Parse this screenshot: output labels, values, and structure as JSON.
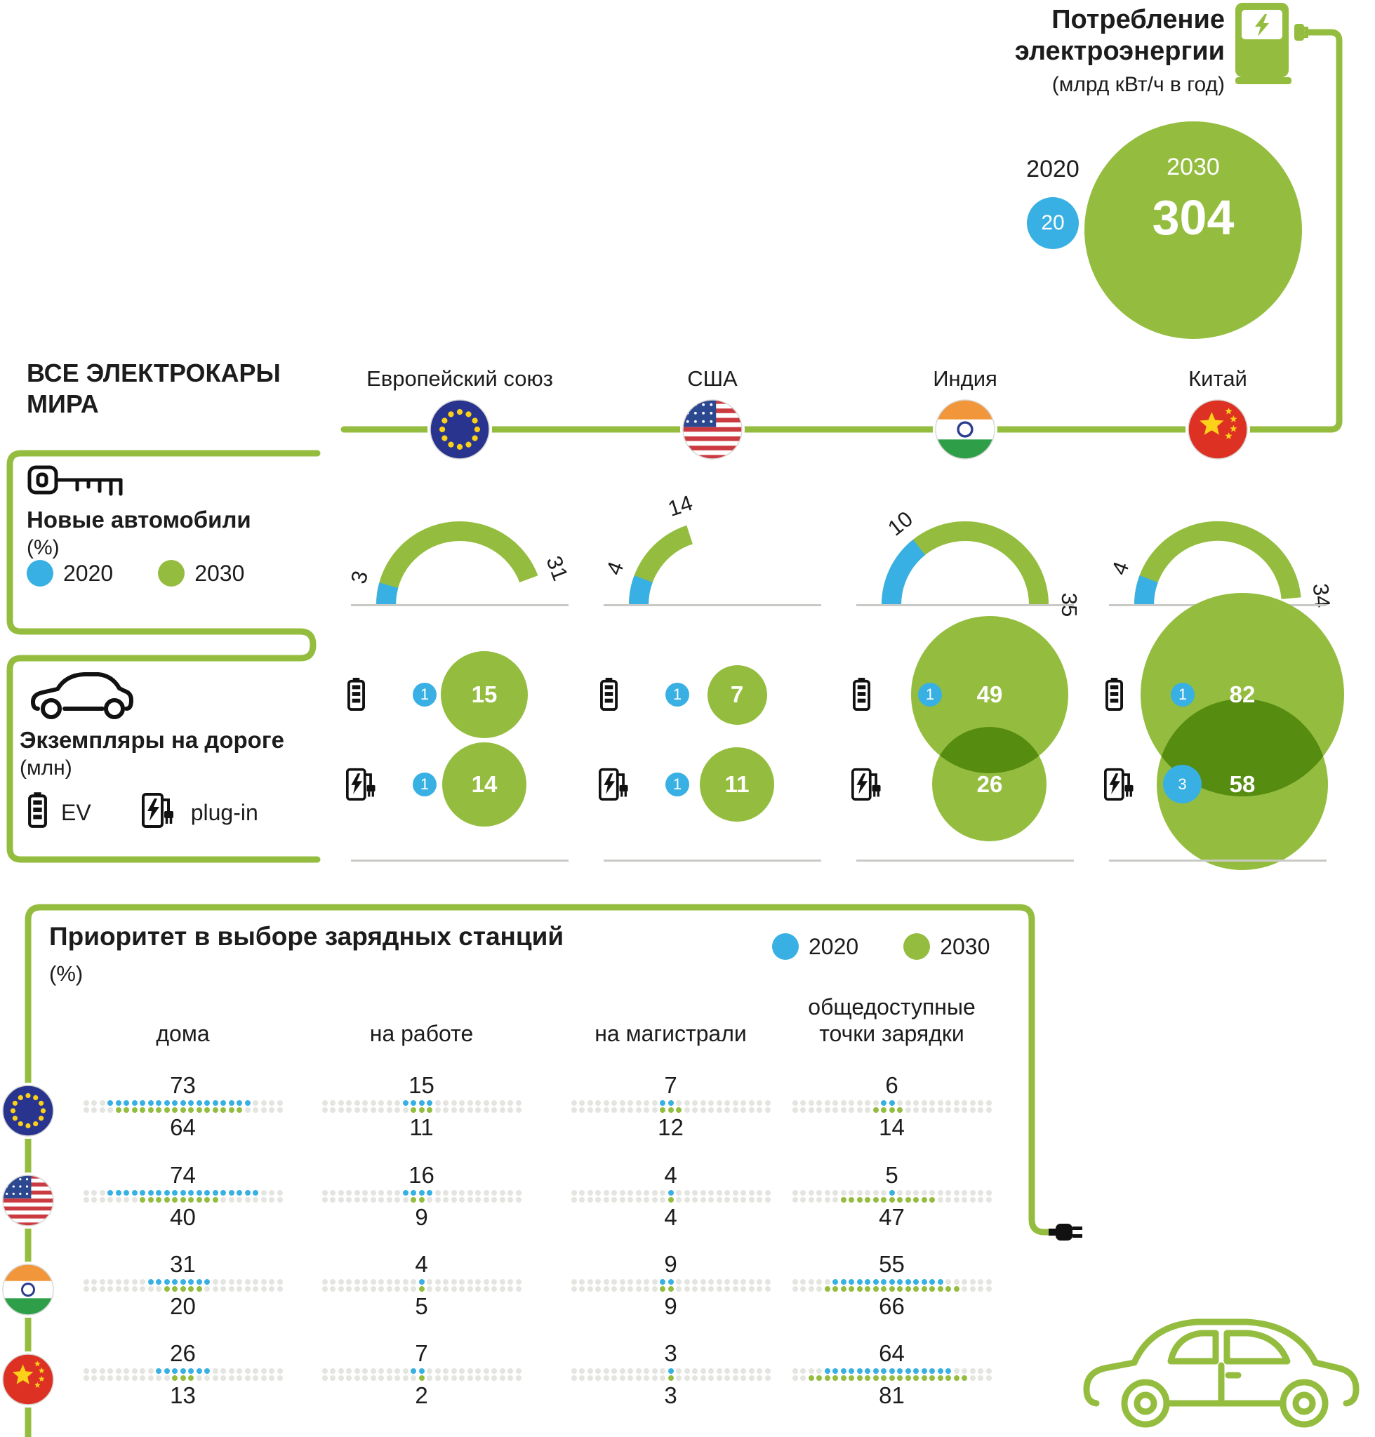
{
  "main_title": "ВСЕ ЭЛЕКТРОКАРЫ МИРА",
  "legend": {
    "y2020": "2020",
    "y2030": "2030"
  },
  "countries": [
    {
      "id": "eu",
      "label": "Европейский союз"
    },
    {
      "id": "usa",
      "label": "США"
    },
    {
      "id": "india",
      "label": "Индия"
    },
    {
      "id": "china",
      "label": "Китай"
    }
  ],
  "colors": {
    "green": "#94bd3f",
    "blue": "#38b0e3",
    "text": "#1c1c1c",
    "gray_dot": "#e4e4e0",
    "gray_line": "#c9c9c5"
  },
  "chart_data": [
    {
      "type": "bubble",
      "name": "electricity-consumption",
      "title": "Потребление электроэнергии",
      "subtitle": "(млрд кВт/ч в год)",
      "series": [
        {
          "label": "2020",
          "value": 20
        },
        {
          "label": "2030",
          "value": 304
        }
      ]
    },
    {
      "type": "gauge",
      "name": "new-cars-share",
      "title": "Новые автомобили",
      "unit": "(%)",
      "max": 35,
      "categories": [
        "Европейский союз",
        "США",
        "Индия",
        "Китай"
      ],
      "series": [
        {
          "name": "2020",
          "values": [
            3,
            4,
            10,
            4
          ]
        },
        {
          "name": "2030",
          "values": [
            31,
            14,
            35,
            34
          ]
        }
      ]
    },
    {
      "type": "bubble",
      "name": "cars-on-road",
      "title": "Экземпляры на дороге",
      "unit": "(млн)",
      "legend": {
        "ev": "EV",
        "plugin": "plug-in"
      },
      "categories": [
        "Европейский союз",
        "США",
        "Индия",
        "Китай"
      ],
      "series": [
        {
          "name": "EV 2020",
          "values": [
            1,
            1,
            1,
            1
          ]
        },
        {
          "name": "EV 2030",
          "values": [
            15,
            7,
            49,
            82
          ]
        },
        {
          "name": "plug-in 2020",
          "values": [
            1,
            1,
            null,
            3
          ]
        },
        {
          "name": "plug-in 2030",
          "values": [
            14,
            11,
            26,
            58
          ]
        }
      ]
    },
    {
      "type": "dot-matrix",
      "name": "charging-priority",
      "title": "Приоритет в выборе зарядных станций",
      "unit": "(%)",
      "dot_value": 4,
      "dots_per_row": 25,
      "columns": [
        "дома",
        "на работе",
        "на магистрали",
        "общедоступные точки зарядки"
      ],
      "rows": [
        {
          "country": "Европейский союз",
          "flag": "eu",
          "y2020": [
            73,
            15,
            7,
            6
          ],
          "y2030": [
            64,
            11,
            12,
            14
          ]
        },
        {
          "country": "США",
          "flag": "usa",
          "y2020": [
            74,
            16,
            4,
            5
          ],
          "y2030": [
            40,
            9,
            4,
            47
          ]
        },
        {
          "country": "Индия",
          "flag": "india",
          "y2020": [
            31,
            4,
            9,
            55
          ],
          "y2030": [
            20,
            5,
            9,
            66
          ]
        },
        {
          "country": "Китай",
          "flag": "china",
          "y2020": [
            26,
            7,
            3,
            64
          ],
          "y2030": [
            13,
            2,
            3,
            81
          ]
        }
      ]
    }
  ]
}
